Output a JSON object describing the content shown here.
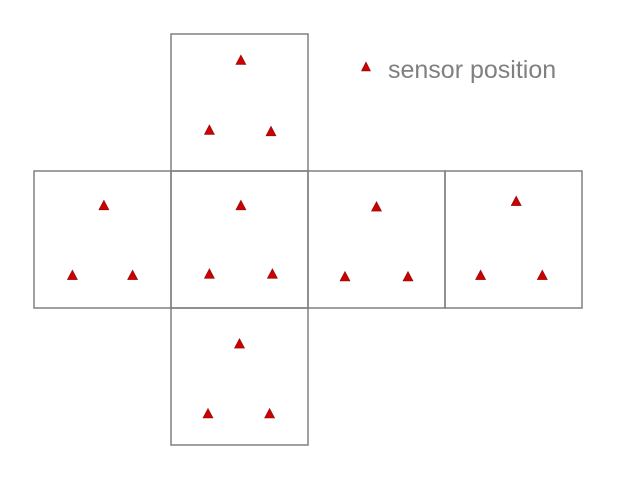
{
  "legend": {
    "label": "sensor position",
    "marker": "triangle"
  },
  "colors": {
    "marker": "#cc0000",
    "face_stroke": "#808080",
    "legend_text": "#808080"
  },
  "faces": [
    {
      "id": "top",
      "row": 0,
      "col": 1,
      "sensors": [
        [
          0.51,
          0.19
        ],
        [
          0.28,
          0.7
        ],
        [
          0.73,
          0.71
        ]
      ]
    },
    {
      "id": "left",
      "row": 1,
      "col": 0,
      "sensors": [
        [
          0.51,
          0.25
        ],
        [
          0.28,
          0.76
        ],
        [
          0.72,
          0.76
        ]
      ]
    },
    {
      "id": "front",
      "row": 1,
      "col": 1,
      "sensors": [
        [
          0.51,
          0.25
        ],
        [
          0.28,
          0.75
        ],
        [
          0.74,
          0.75
        ]
      ]
    },
    {
      "id": "right",
      "row": 1,
      "col": 2,
      "sensors": [
        [
          0.5,
          0.26
        ],
        [
          0.27,
          0.77
        ],
        [
          0.73,
          0.77
        ]
      ]
    },
    {
      "id": "back",
      "row": 1,
      "col": 3,
      "sensors": [
        [
          0.52,
          0.22
        ],
        [
          0.26,
          0.76
        ],
        [
          0.71,
          0.76
        ]
      ]
    },
    {
      "id": "bottom",
      "row": 2,
      "col": 1,
      "sensors": [
        [
          0.5,
          0.26
        ],
        [
          0.27,
          0.77
        ],
        [
          0.72,
          0.77
        ]
      ]
    }
  ]
}
